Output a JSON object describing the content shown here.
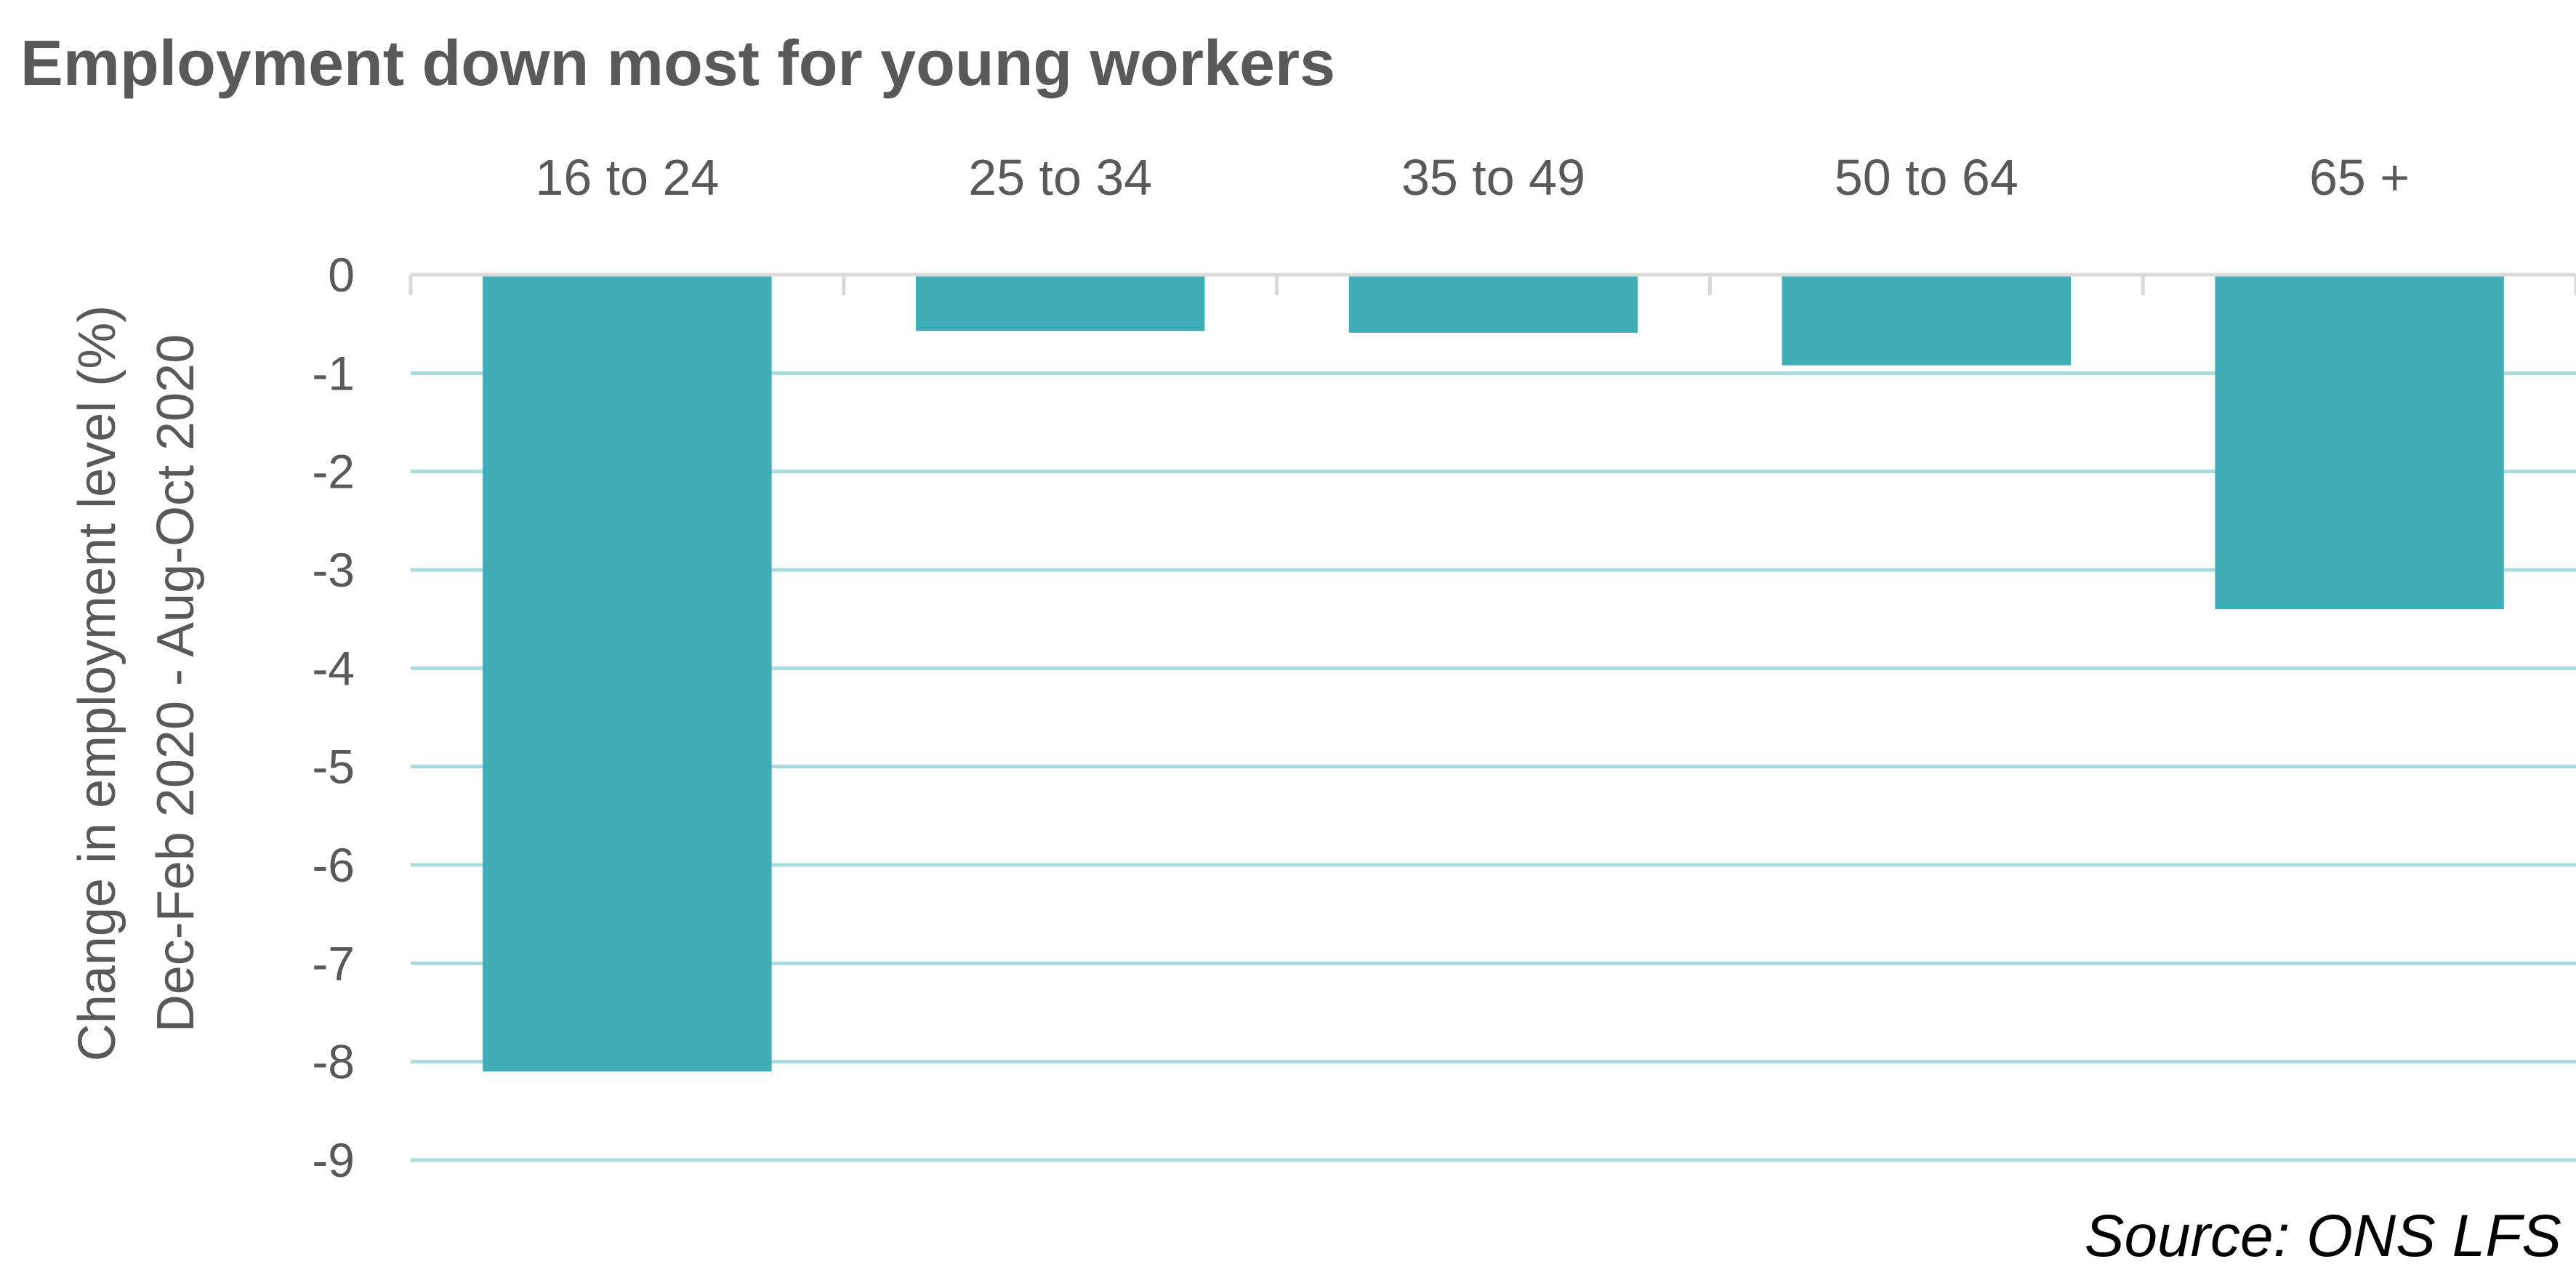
{
  "chart_data": {
    "type": "bar",
    "title": "Employment down most for young workers",
    "ylabel_lines": [
      "Change in employment level (%)",
      "Dec-Feb 2020 - Aug-Oct 2020"
    ],
    "xlabel": "",
    "categories": [
      "16 to 24",
      "25 to 34",
      "35 to 49",
      "50 to 64",
      "65 +"
    ],
    "values": [
      -8.1,
      -0.57,
      -0.59,
      -0.92,
      -3.4
    ],
    "ylim": [
      -9,
      0
    ],
    "yticks": [
      0,
      -1,
      -2,
      -3,
      -4,
      -5,
      -6,
      -7,
      -8,
      -9
    ],
    "grid": true,
    "x_axis_position": "top",
    "legend": "none",
    "source": "Source: ONS LFS",
    "colors": {
      "bar": "#40ACB6",
      "grid": "#A8DCE0",
      "axis": "#D9D9D9",
      "text": "#595959"
    }
  }
}
